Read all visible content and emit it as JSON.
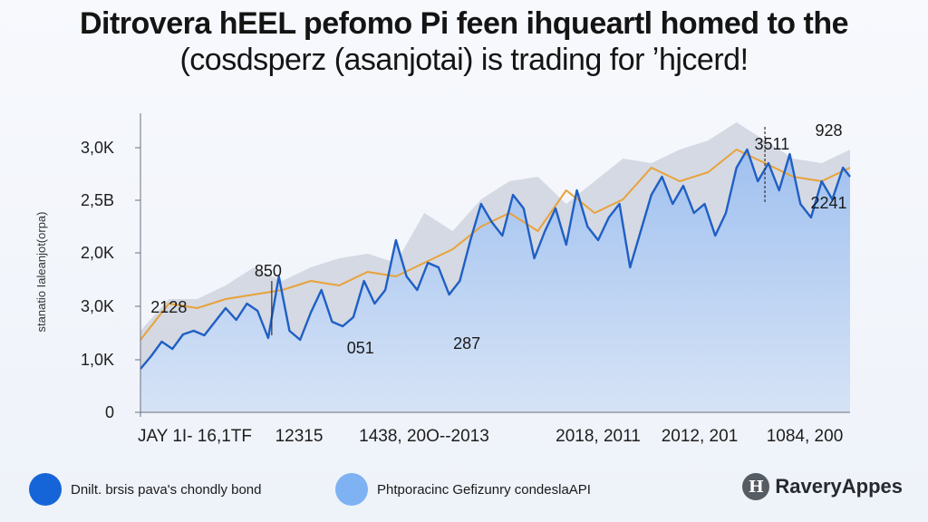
{
  "title": {
    "line1": "Ditrovera hEEL pefomo Pi feen ihqueartl homed to the",
    "line2": "(cosdsperz (asanjotai) is trading for ʼhjcerd!"
  },
  "chart_data": {
    "type": "area",
    "ylabel": "stanatio Ialeanjot(orpa)",
    "y_tick_labels": [
      "0",
      "1,0K",
      "3,0K",
      "2,0K",
      "2,5B",
      "3,0K"
    ],
    "x_tick_labels": [
      "JAY 1I- 16,1TF",
      "12315",
      "1438, 20O--2013",
      "2018, 2011",
      "2012, 201",
      "1084, 200"
    ],
    "ylim": [
      0,
      3200
    ],
    "x_range": [
      0,
      100
    ],
    "grid": false,
    "colors": {
      "primary_line": "#1f5fc4",
      "upper_line": "#e8a23a",
      "area_fill": "#a9c6ef",
      "band_fill": "#c9cfdb"
    },
    "series": [
      {
        "name": "Dnilt. brsis pava's chondly bond",
        "x": [
          0,
          1.5,
          3,
          4.5,
          6,
          7.5,
          9,
          10.5,
          12,
          13.5,
          15,
          16.5,
          18,
          19.5,
          21,
          22.5,
          24,
          25.5,
          27,
          28.5,
          30,
          31.5,
          33,
          34.5,
          36,
          37.5,
          39,
          40.5,
          42,
          43.5,
          45,
          46.5,
          48,
          49.5,
          51,
          52.5,
          54,
          55.5,
          57,
          58.5,
          60,
          61.5,
          63,
          64.5,
          66,
          67.5,
          69,
          70.5,
          72,
          73.5,
          75,
          76.5,
          78,
          79.5,
          81,
          82.5,
          84,
          85.5,
          87,
          88.5,
          90,
          91.5,
          93,
          94.5,
          96,
          97.5,
          99,
          100
        ],
        "values": [
          480,
          620,
          780,
          700,
          860,
          900,
          850,
          1000,
          1150,
          1020,
          1200,
          1120,
          820,
          1500,
          900,
          800,
          1100,
          1350,
          1000,
          950,
          1050,
          1450,
          1200,
          1350,
          1900,
          1500,
          1350,
          1650,
          1600,
          1300,
          1450,
          1900,
          2300,
          2100,
          1950,
          2400,
          2250,
          1700,
          2000,
          2250,
          1850,
          2450,
          2050,
          1900,
          2150,
          2300,
          1600,
          2000,
          2400,
          2600,
          2300,
          2500,
          2200,
          2300,
          1950,
          2200,
          2700,
          2900,
          2550,
          2750,
          2450,
          2850,
          2300,
          2150,
          2550,
          2350,
          2700,
          2600
        ]
      },
      {
        "name": "Phtporacinc Gefizunry condeslaAPI",
        "x": [
          0,
          4,
          8,
          12,
          16,
          20,
          24,
          28,
          32,
          36,
          40,
          44,
          48,
          52,
          56,
          60,
          64,
          68,
          72,
          76,
          80,
          84,
          88,
          92,
          96,
          100
        ],
        "values": [
          800,
          1200,
          1150,
          1250,
          1300,
          1350,
          1450,
          1400,
          1550,
          1500,
          1650,
          1800,
          2050,
          2200,
          2000,
          2450,
          2200,
          2350,
          2700,
          2550,
          2650,
          2900,
          2750,
          2600,
          2550,
          2700
        ]
      }
    ],
    "area_upper": [
      900,
      1250,
      1250,
      1400,
      1600,
      1450,
      1600,
      1700,
      1750,
      1650,
      2200,
      2000,
      2350,
      2550,
      2600,
      2300,
      2550,
      2800,
      2750,
      2900,
      3000,
      3200,
      3000,
      2800,
      2750,
      2900
    ],
    "annotations": [
      {
        "text": "2128",
        "x": 4,
        "y": 1100
      },
      {
        "text": "850",
        "x": 18,
        "y": 1500
      },
      {
        "text": "051",
        "x": 31,
        "y": 650
      },
      {
        "text": "287",
        "x": 46,
        "y": 700
      },
      {
        "text": "3511",
        "x": 89,
        "y": 2900
      },
      {
        "text": "928",
        "x": 97,
        "y": 3050
      },
      {
        "text": "2241",
        "x": 97,
        "y": 2250
      }
    ]
  },
  "legend": {
    "items": [
      {
        "label": "Dnilt. brsis pava's chondly bond",
        "color": "#1565d8"
      },
      {
        "label": "Phtporacinc Gefizunry condeslaAPI",
        "color": "#7eb2f2"
      }
    ]
  },
  "logo": {
    "mark": "H",
    "text": "RaveryAppes"
  }
}
